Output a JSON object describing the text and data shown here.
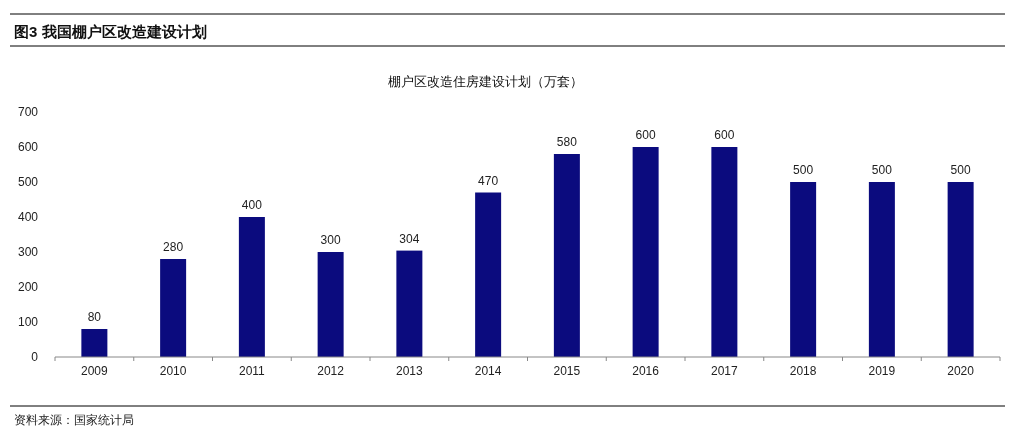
{
  "chart_data": {
    "type": "bar",
    "title": "图3  我国棚户区改造建设计划",
    "subtitle": "棚户区改造住房建设计划（万套）",
    "categories": [
      "2009",
      "2010",
      "2011",
      "2012",
      "2013",
      "2014",
      "2015",
      "2016",
      "2017",
      "2018",
      "2019",
      "2020"
    ],
    "values": [
      80,
      280,
      400,
      300,
      304,
      470,
      580,
      600,
      600,
      500,
      500,
      500
    ],
    "color": "#0b0b7e",
    "ylim": [
      0,
      700
    ],
    "yticks": [
      0,
      100,
      200,
      300,
      400,
      500,
      600,
      700
    ],
    "data_labels": true,
    "annotations": [
      "资料来源：国家统计局"
    ]
  }
}
